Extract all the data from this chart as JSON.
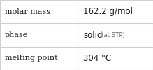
{
  "rows": [
    {
      "label": "molar mass",
      "value": "162.2 g/mol",
      "value_note": ""
    },
    {
      "label": "phase",
      "value": "solid",
      "value_note": "(at STP)"
    },
    {
      "label": "melting point",
      "value": "304 °C",
      "value_note": ""
    }
  ],
  "col_split": 0.505,
  "background_color": "#ffffff",
  "border_color": "#d0d0d0",
  "label_fontsize": 8.0,
  "value_fontsize": 8.5,
  "note_fontsize": 6.2,
  "text_color": "#1a1a1a",
  "note_color": "#666666",
  "label_font": "DejaVu Serif",
  "value_font": "DejaVu Sans"
}
